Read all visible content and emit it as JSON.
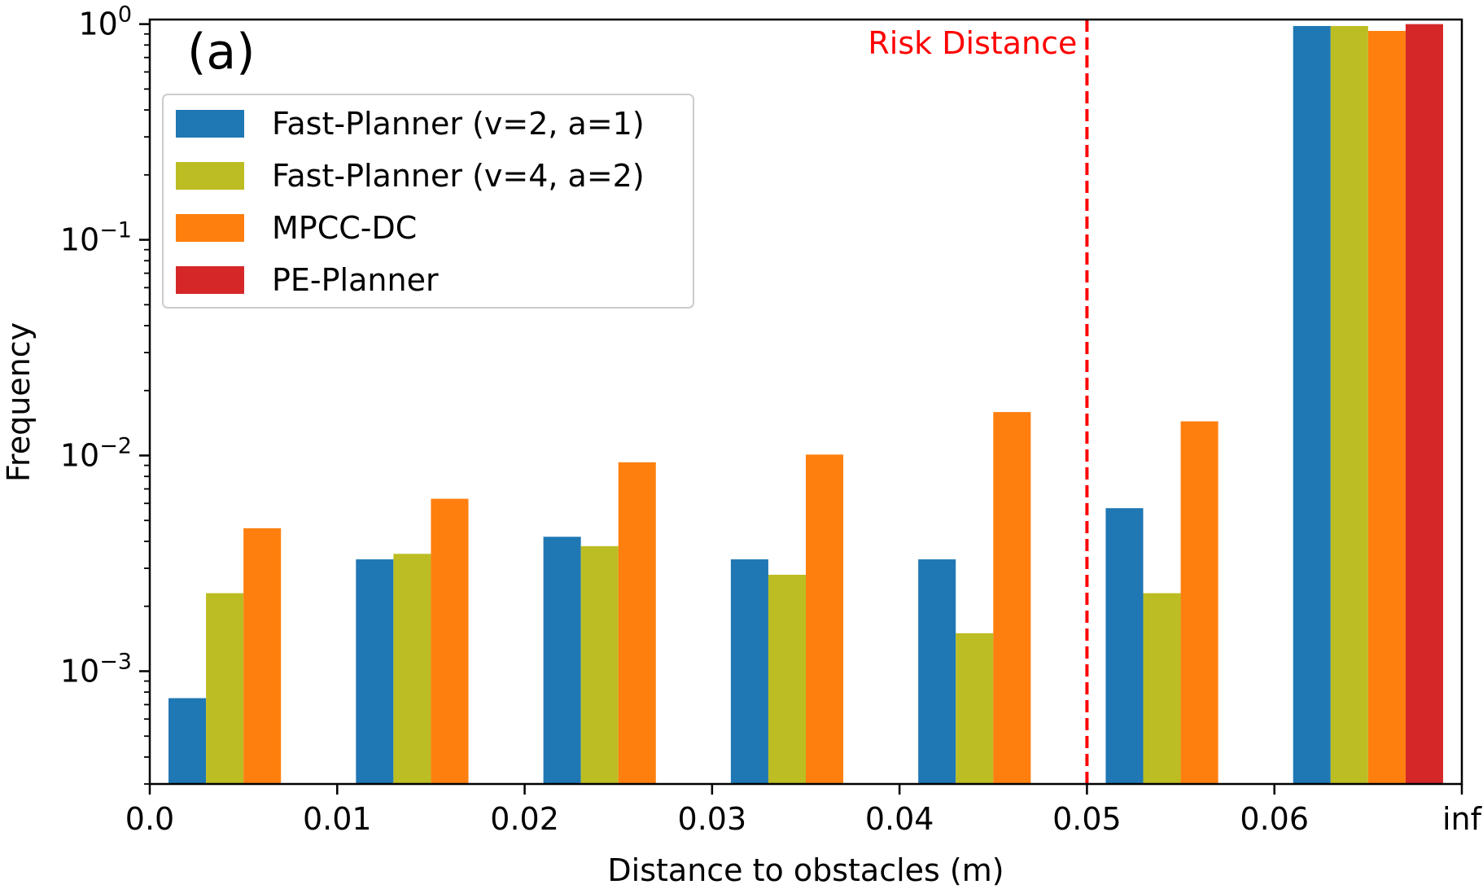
{
  "chart_data": {
    "type": "bar",
    "panel_label": "(a)",
    "xlabel": "Distance to obstacles (m)",
    "ylabel": "Frequency",
    "yscale": "log",
    "ylim": [
      0.0003,
      1.05
    ],
    "x_tick_labels": [
      "0.0",
      "0.01",
      "0.02",
      "0.03",
      "0.04",
      "0.05",
      "0.06",
      "inf"
    ],
    "y_ticks": [
      {
        "base": "10",
        "exp": "0",
        "value": 1
      },
      {
        "base": "10",
        "exp": "−1",
        "value": 0.1
      },
      {
        "base": "10",
        "exp": "−2",
        "value": 0.01
      },
      {
        "base": "10",
        "exp": "−3",
        "value": 0.001
      }
    ],
    "bins": [
      "0.00-0.01",
      "0.01-0.02",
      "0.02-0.03",
      "0.03-0.04",
      "0.04-0.05",
      "0.05-0.06",
      "0.06-inf"
    ],
    "series": [
      {
        "name": "Fast-Planner (v=2, a=1)",
        "color": "#1f77b4",
        "values": [
          0.00075,
          0.0033,
          0.0042,
          0.0033,
          0.0033,
          0.0057,
          0.98
        ]
      },
      {
        "name": "Fast-Planner (v=4, a=2)",
        "color": "#bcbd22",
        "values": [
          0.0023,
          0.0035,
          0.0038,
          0.0028,
          0.0015,
          0.0023,
          0.98
        ]
      },
      {
        "name": "MPCC-DC",
        "color": "#ff7f0e",
        "values": [
          0.0046,
          0.0063,
          0.0093,
          0.0101,
          0.0159,
          0.0144,
          0.93
        ]
      },
      {
        "name": "PE-Planner",
        "color": "#d62728",
        "values": [
          null,
          null,
          null,
          null,
          null,
          null,
          1.0
        ]
      }
    ],
    "risk_line": {
      "label": "Risk Distance",
      "x": 0.05,
      "color": "#ff0000"
    },
    "legend_position": "upper-left"
  }
}
